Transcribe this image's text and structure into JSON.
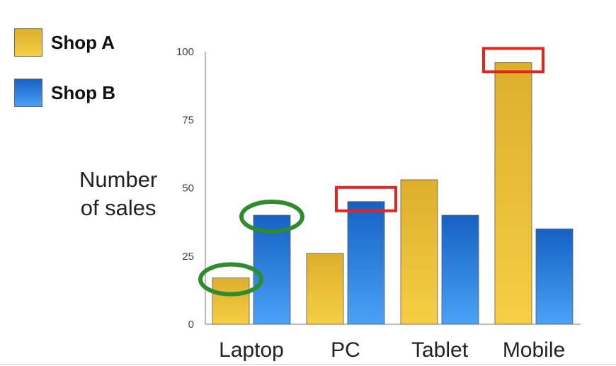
{
  "legend": {
    "items": [
      {
        "label": "Shop A"
      },
      {
        "label": "Shop B"
      }
    ]
  },
  "ylabel": {
    "line1": "Number",
    "line2": "of sales"
  },
  "colors": {
    "shop_a_top": "#dcae2c",
    "shop_a_bottom": "#f5cf45",
    "shop_b_top": "#1561c4",
    "shop_b_bottom": "#4aa2f5",
    "highlight_circle": "#2e8b2e",
    "highlight_box": "#e8231e"
  },
  "chart_data": {
    "type": "bar",
    "categories": [
      "Laptop",
      "PC",
      "Tablet",
      "Mobile"
    ],
    "series": [
      {
        "name": "Shop A",
        "values": [
          17,
          26,
          53,
          96
        ]
      },
      {
        "name": "Shop B",
        "values": [
          40,
          45,
          40,
          35
        ]
      }
    ],
    "xlabel": "",
    "ylabel": "Number of sales",
    "ylim": [
      0,
      100
    ],
    "yticks": [
      0,
      25,
      50,
      75,
      100
    ],
    "grid": false,
    "legend_position": "top-left",
    "annotations": [
      {
        "shape": "ellipse",
        "color": "green",
        "category": "Laptop",
        "series": "Shop A"
      },
      {
        "shape": "ellipse",
        "color": "green",
        "category": "Laptop",
        "series": "Shop B"
      },
      {
        "shape": "rectangle",
        "color": "red",
        "category": "PC",
        "series": "Shop B"
      },
      {
        "shape": "rectangle",
        "color": "red",
        "category": "Mobile",
        "series": "Shop A"
      }
    ]
  }
}
